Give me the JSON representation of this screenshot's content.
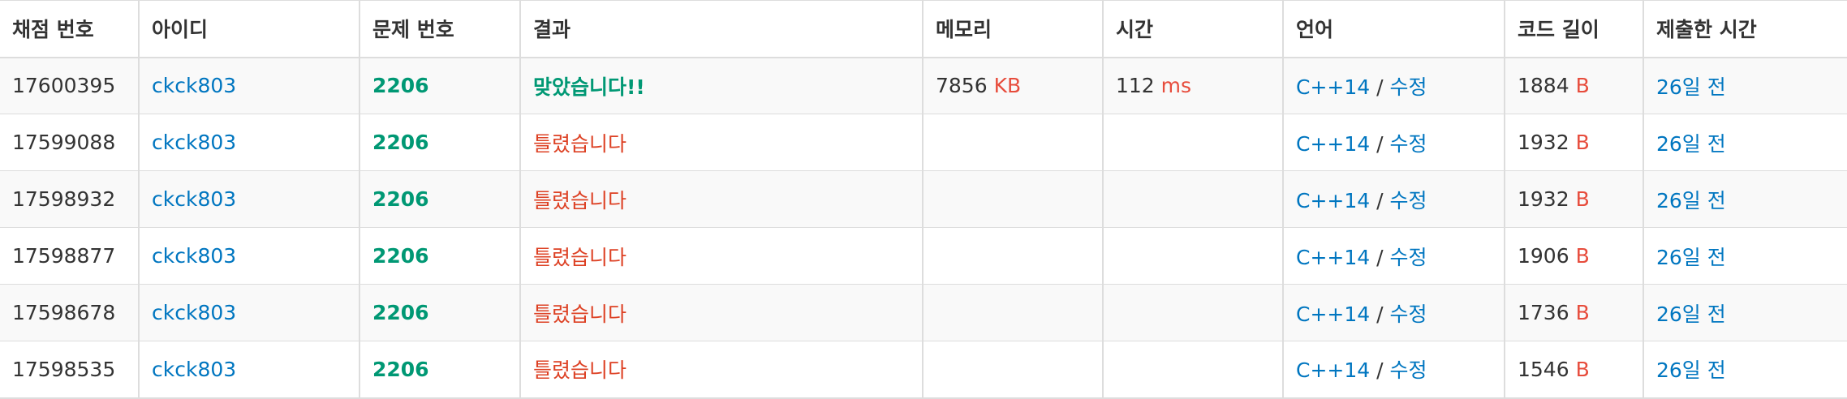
{
  "headers": {
    "id": "채점 번호",
    "user": "아이디",
    "problem": "문제 번호",
    "result": "결과",
    "memory": "메모리",
    "time": "시간",
    "language": "언어",
    "code_length": "코드 길이",
    "submitted": "제출한 시간"
  },
  "units": {
    "memory": "KB",
    "time": "ms",
    "length": "B"
  },
  "edit_separator": "/",
  "colors": {
    "link": "#0076c0",
    "accepted": "#009874",
    "wrong": "#dd4124",
    "unit": "#e74c3c"
  },
  "rows": [
    {
      "id": "17600395",
      "user": "ckck803",
      "problem": "2206",
      "result": "맞았습니다!!",
      "result_status": "accepted",
      "memory": "7856",
      "time": "112",
      "language": "C++14",
      "edit": "수정",
      "length": "1884",
      "submitted": "26일 전"
    },
    {
      "id": "17599088",
      "user": "ckck803",
      "problem": "2206",
      "result": "틀렸습니다",
      "result_status": "wrong",
      "memory": "",
      "time": "",
      "language": "C++14",
      "edit": "수정",
      "length": "1932",
      "submitted": "26일 전"
    },
    {
      "id": "17598932",
      "user": "ckck803",
      "problem": "2206",
      "result": "틀렸습니다",
      "result_status": "wrong",
      "memory": "",
      "time": "",
      "language": "C++14",
      "edit": "수정",
      "length": "1932",
      "submitted": "26일 전"
    },
    {
      "id": "17598877",
      "user": "ckck803",
      "problem": "2206",
      "result": "틀렸습니다",
      "result_status": "wrong",
      "memory": "",
      "time": "",
      "language": "C++14",
      "edit": "수정",
      "length": "1906",
      "submitted": "26일 전"
    },
    {
      "id": "17598678",
      "user": "ckck803",
      "problem": "2206",
      "result": "틀렸습니다",
      "result_status": "wrong",
      "memory": "",
      "time": "",
      "language": "C++14",
      "edit": "수정",
      "length": "1736",
      "submitted": "26일 전"
    },
    {
      "id": "17598535",
      "user": "ckck803",
      "problem": "2206",
      "result": "틀렸습니다",
      "result_status": "wrong",
      "memory": "",
      "time": "",
      "language": "C++14",
      "edit": "수정",
      "length": "1546",
      "submitted": "26일 전"
    }
  ]
}
